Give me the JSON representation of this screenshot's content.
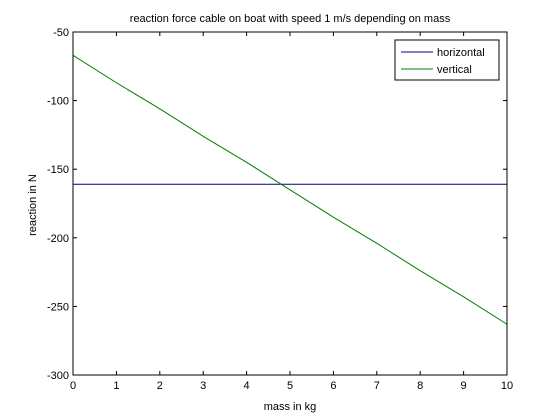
{
  "chart_data": {
    "type": "line",
    "title": "reaction force cable on boat with speed 1 m/s depending on mass",
    "xlabel": "mass in kg",
    "ylabel": "reaction in N",
    "xlim": [
      0,
      10
    ],
    "ylim": [
      -300,
      -50
    ],
    "xticks": [
      0,
      1,
      2,
      3,
      4,
      5,
      6,
      7,
      8,
      9,
      10
    ],
    "yticks": [
      -300,
      -250,
      -200,
      -150,
      -100,
      -50
    ],
    "grid": false,
    "legend_position": "top-right",
    "series": [
      {
        "name": "horizontal",
        "color": "#00007f",
        "x": [
          0,
          10
        ],
        "y": [
          -161,
          -161
        ]
      },
      {
        "name": "vertical",
        "color": "#007f00",
        "x": [
          0,
          1,
          2,
          3,
          4,
          5,
          6,
          7,
          8,
          9,
          10
        ],
        "y": [
          -67,
          -87,
          -106,
          -126,
          -145,
          -165,
          -185,
          -204,
          -224,
          -243,
          -263
        ]
      }
    ]
  }
}
